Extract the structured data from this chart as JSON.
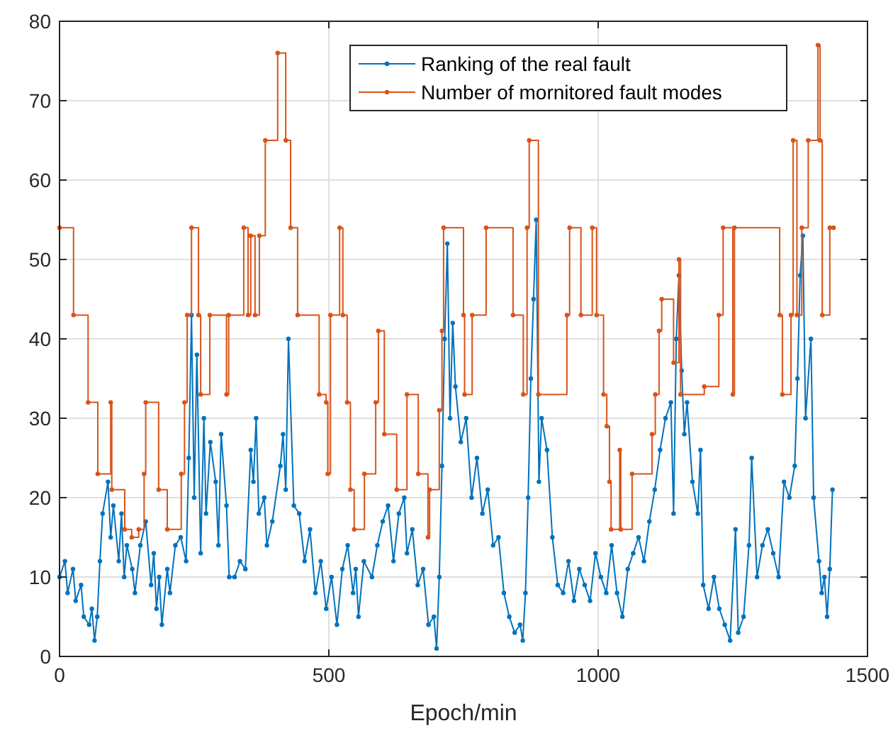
{
  "chart_data": {
    "type": "line",
    "xlabel": "Epoch/min",
    "xlim": [
      0,
      1500
    ],
    "xticks": [
      0,
      500,
      1000,
      1500
    ],
    "ylim": [
      0,
      80
    ],
    "yticks": [
      0,
      10,
      20,
      30,
      40,
      50,
      60,
      70,
      80
    ],
    "grid": true,
    "legend": "top right",
    "marker": "circle",
    "line_style": "solid",
    "series": [
      {
        "name": "Ranking of the real fault",
        "color": "#0072bd",
        "x": [
          0,
          10,
          15,
          25,
          30,
          40,
          45,
          55,
          60,
          65,
          70,
          75,
          80,
          90,
          95,
          100,
          110,
          115,
          120,
          125,
          135,
          140,
          150,
          160,
          170,
          175,
          180,
          185,
          190,
          200,
          205,
          215,
          225,
          235,
          240,
          245,
          250,
          255,
          262,
          268,
          272,
          280,
          290,
          295,
          300,
          310,
          315,
          325,
          335,
          345,
          355,
          360,
          365,
          370,
          380,
          385,
          395,
          410,
          415,
          420,
          425,
          435,
          445,
          455,
          465,
          475,
          485,
          495,
          505,
          515,
          525,
          535,
          545,
          550,
          555,
          565,
          580,
          590,
          600,
          610,
          620,
          630,
          640,
          645,
          655,
          665,
          675,
          685,
          695,
          700,
          705,
          710,
          715,
          720,
          725,
          730,
          735,
          745,
          755,
          765,
          775,
          785,
          795,
          805,
          815,
          825,
          835,
          845,
          855,
          860,
          865,
          870,
          875,
          880,
          885,
          890,
          895,
          905,
          915,
          925,
          935,
          945,
          955,
          965,
          975,
          985,
          995,
          1005,
          1015,
          1025,
          1035,
          1045,
          1055,
          1065,
          1075,
          1085,
          1095,
          1105,
          1115,
          1125,
          1135,
          1140,
          1145,
          1150,
          1155,
          1160,
          1165,
          1175,
          1185,
          1190,
          1195,
          1205,
          1215,
          1225,
          1235,
          1245,
          1255,
          1260,
          1270,
          1280,
          1285,
          1295,
          1305,
          1315,
          1325,
          1335,
          1345,
          1355,
          1365,
          1370,
          1375,
          1380,
          1385,
          1395,
          1400,
          1410,
          1415,
          1420,
          1425,
          1430,
          1435
        ],
        "values": [
          10,
          12,
          8,
          11,
          7,
          9,
          5,
          4,
          6,
          2,
          5,
          12,
          18,
          22,
          15,
          19,
          12,
          18,
          10,
          14,
          11,
          8,
          14,
          17,
          9,
          13,
          6,
          10,
          4,
          11,
          8,
          14,
          15,
          12,
          25,
          43,
          20,
          38,
          13,
          30,
          18,
          27,
          22,
          14,
          28,
          19,
          10,
          10,
          12,
          11,
          26,
          22,
          30,
          18,
          20,
          14,
          17,
          24,
          28,
          21,
          40,
          19,
          18,
          12,
          16,
          8,
          12,
          6,
          10,
          4,
          11,
          14,
          8,
          11,
          5,
          12,
          10,
          14,
          17,
          19,
          12,
          18,
          20,
          13,
          16,
          9,
          11,
          4,
          5,
          1,
          10,
          24,
          40,
          52,
          30,
          42,
          34,
          27,
          30,
          20,
          25,
          18,
          21,
          14,
          15,
          8,
          5,
          3,
          4,
          2,
          8,
          20,
          35,
          45,
          55,
          22,
          30,
          26,
          15,
          9,
          8,
          12,
          7,
          11,
          9,
          7,
          13,
          10,
          8,
          14,
          8,
          5,
          11,
          13,
          15,
          12,
          17,
          21,
          26,
          30,
          32,
          18,
          40,
          48,
          36,
          28,
          32,
          22,
          18,
          26,
          9,
          6,
          10,
          6,
          4,
          2,
          16,
          3,
          5,
          14,
          25,
          10,
          14,
          16,
          13,
          10,
          22,
          20,
          24,
          35,
          48,
          53,
          30,
          40,
          20,
          12,
          8,
          10,
          5,
          11,
          21
        ]
      },
      {
        "name": "Number of mornitored fault modes",
        "color": "#d95319",
        "type": "step",
        "x": [
          0,
          26,
          53,
          71,
          95,
          97,
          121,
          134,
          147,
          157,
          160,
          184,
          200,
          226,
          232,
          237,
          245,
          258,
          262,
          279,
          310,
          314,
          342,
          350,
          355,
          363,
          371,
          382,
          405,
          420,
          429,
          442,
          482,
          495,
          498,
          503,
          520,
          526,
          534,
          540,
          547,
          566,
          587,
          592,
          603,
          626,
          645,
          666,
          684,
          687,
          705,
          710,
          713,
          750,
          752,
          766,
          792,
          842,
          861,
          868,
          872,
          889,
          942,
          947,
          968,
          989,
          997,
          1010,
          1016,
          1021,
          1024,
          1040,
          1042,
          1063,
          1100,
          1106,
          1113,
          1118,
          1140,
          1150,
          1153,
          1197,
          1224,
          1232,
          1250,
          1253,
          1337,
          1342,
          1358,
          1362,
          1369,
          1378,
          1390,
          1408,
          1412,
          1416,
          1430,
          1437
        ],
        "values": [
          54,
          43,
          32,
          23,
          32,
          21,
          16,
          15,
          16,
          23,
          32,
          21,
          16,
          23,
          32,
          43,
          54,
          43,
          33,
          43,
          33,
          43,
          54,
          43,
          53,
          43,
          53,
          65,
          76,
          65,
          54,
          43,
          33,
          32,
          23,
          43,
          54,
          43,
          32,
          21,
          16,
          23,
          32,
          41,
          28,
          21,
          33,
          23,
          15,
          21,
          31,
          41,
          54,
          43,
          33,
          43,
          54,
          43,
          33,
          54,
          65,
          33,
          43,
          54,
          43,
          54,
          43,
          33,
          29,
          22,
          16,
          26,
          16,
          23,
          28,
          33,
          41,
          45,
          37,
          50,
          33,
          34,
          43,
          54,
          33,
          54,
          43,
          33,
          43,
          65,
          43,
          54,
          65,
          77,
          65,
          43,
          54,
          54
        ]
      }
    ]
  }
}
